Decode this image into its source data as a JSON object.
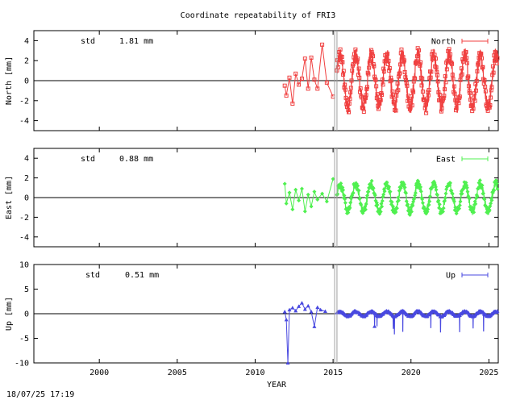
{
  "title": "Coordinate repeatability of FRI3",
  "timestamp": "18/07/25 17:19",
  "chart_data": [
    {
      "type": "line",
      "series": [
        {
          "name": "North",
          "color": "#f04040",
          "marker": "square"
        }
      ],
      "ylabel": "North [mm]",
      "ylim": [
        -5,
        5
      ],
      "yticks": [
        "4",
        "2",
        "0",
        "-2",
        "-4"
      ],
      "ytick_values": [
        4,
        2,
        0,
        -2,
        -4
      ],
      "std_label": "std",
      "std_value": "1.81 mm",
      "seasonal_amplitude": 2.6,
      "x": [
        2011.9,
        2012.0,
        2012.2,
        2012.4,
        2012.6,
        2012.8,
        2013.0,
        2013.2,
        2013.4,
        2013.6,
        2013.8,
        2014.0,
        2014.3,
        2014.6,
        2015.0
      ],
      "values": [
        -0.5,
        -1.5,
        0.3,
        -2.3,
        0.7,
        -0.4,
        0.2,
        2.2,
        -0.8,
        2.3,
        0.1,
        -0.8,
        3.6,
        -0.2,
        -1.6
      ]
    },
    {
      "type": "line",
      "series": [
        {
          "name": "East",
          "color": "#50f050",
          "marker": "diamond"
        }
      ],
      "ylabel": "East [mm]",
      "ylim": [
        -5,
        5
      ],
      "yticks": [
        "4",
        "2",
        "0",
        "-2",
        "-4"
      ],
      "ytick_values": [
        4,
        2,
        0,
        -2,
        -4
      ],
      "std_label": "std",
      "std_value": "0.88 mm",
      "seasonal_amplitude": 1.4,
      "x": [
        2011.9,
        2012.0,
        2012.2,
        2012.4,
        2012.6,
        2012.8,
        2013.0,
        2013.2,
        2013.4,
        2013.6,
        2013.8,
        2014.0,
        2014.3,
        2014.6,
        2015.0
      ],
      "values": [
        1.4,
        -0.6,
        0.5,
        -1.2,
        0.8,
        -0.3,
        0.9,
        -1.4,
        0.3,
        -0.9,
        0.6,
        -0.2,
        0.4,
        -0.4,
        1.9
      ]
    },
    {
      "type": "line",
      "series": [
        {
          "name": "Up",
          "color": "#4848e0",
          "marker": "triangle"
        }
      ],
      "ylabel": "Up [mm]",
      "ylim": [
        -10,
        10
      ],
      "yticks": [
        "10",
        "5",
        "0",
        "-5",
        "-10"
      ],
      "ytick_values": [
        10,
        5,
        0,
        -5,
        -10
      ],
      "std_label": "std",
      "std_value": "0.51 mm",
      "seasonal_amplitude": 0.5,
      "x": [
        2011.9,
        2012.0,
        2012.1,
        2012.2,
        2012.4,
        2012.6,
        2012.8,
        2013.0,
        2013.2,
        2013.4,
        2013.6,
        2013.8,
        2014.0,
        2014.2,
        2014.5
      ],
      "values": [
        0.4,
        -1.2,
        -10.0,
        0.8,
        1.2,
        0.6,
        1.5,
        2.2,
        0.9,
        1.6,
        0.4,
        -2.6,
        1.3,
        0.8,
        0.5
      ]
    }
  ],
  "xaxis": {
    "label": "YEAR",
    "xlim": [
      1995.8,
      2025.6
    ],
    "ticks": [
      "2000",
      "2005",
      "2010",
      "2015",
      "2020",
      "2025"
    ],
    "tick_values": [
      2000,
      2005,
      2010,
      2015,
      2020,
      2025
    ],
    "dense_start": 2015.25,
    "event_lines": [
      2015.1,
      2015.25
    ]
  }
}
